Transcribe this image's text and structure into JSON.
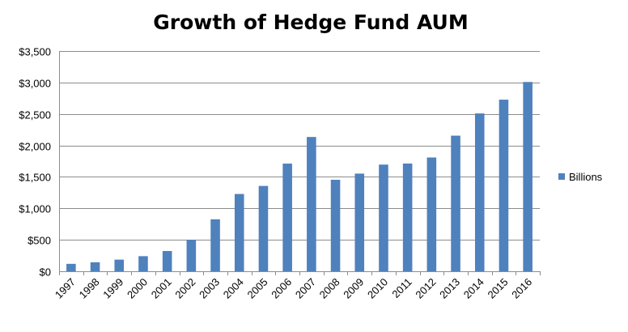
{
  "chart_data": {
    "type": "bar",
    "title": "Growth of Hedge Fund AUM",
    "xlabel": "",
    "ylabel": "",
    "categories": [
      "1997",
      "1998",
      "1999",
      "2000",
      "2001",
      "2002",
      "2003",
      "2004",
      "2005",
      "2006",
      "2007",
      "2008",
      "2009",
      "2010",
      "2011",
      "2012",
      "2013",
      "2014",
      "2015",
      "2016"
    ],
    "series": [
      {
        "name": "Billions",
        "color": "#4f81bd",
        "values": [
          118,
          143,
          185,
          240,
          322,
          502,
          826,
          1228,
          1356,
          1711,
          2134,
          1454,
          1552,
          1695,
          1712,
          1808,
          2155,
          2508,
          2727,
          3008
        ]
      }
    ],
    "ylim": [
      0,
      3500
    ],
    "y_ticks": [
      0,
      500,
      1000,
      1500,
      2000,
      2500,
      3000,
      3500
    ],
    "y_tick_labels": [
      "$0",
      "$500",
      "$1,000",
      "$1,500",
      "$2,000",
      "$2,500",
      "$3,000",
      "$3,500"
    ],
    "grid": true,
    "legend_position": "right"
  }
}
